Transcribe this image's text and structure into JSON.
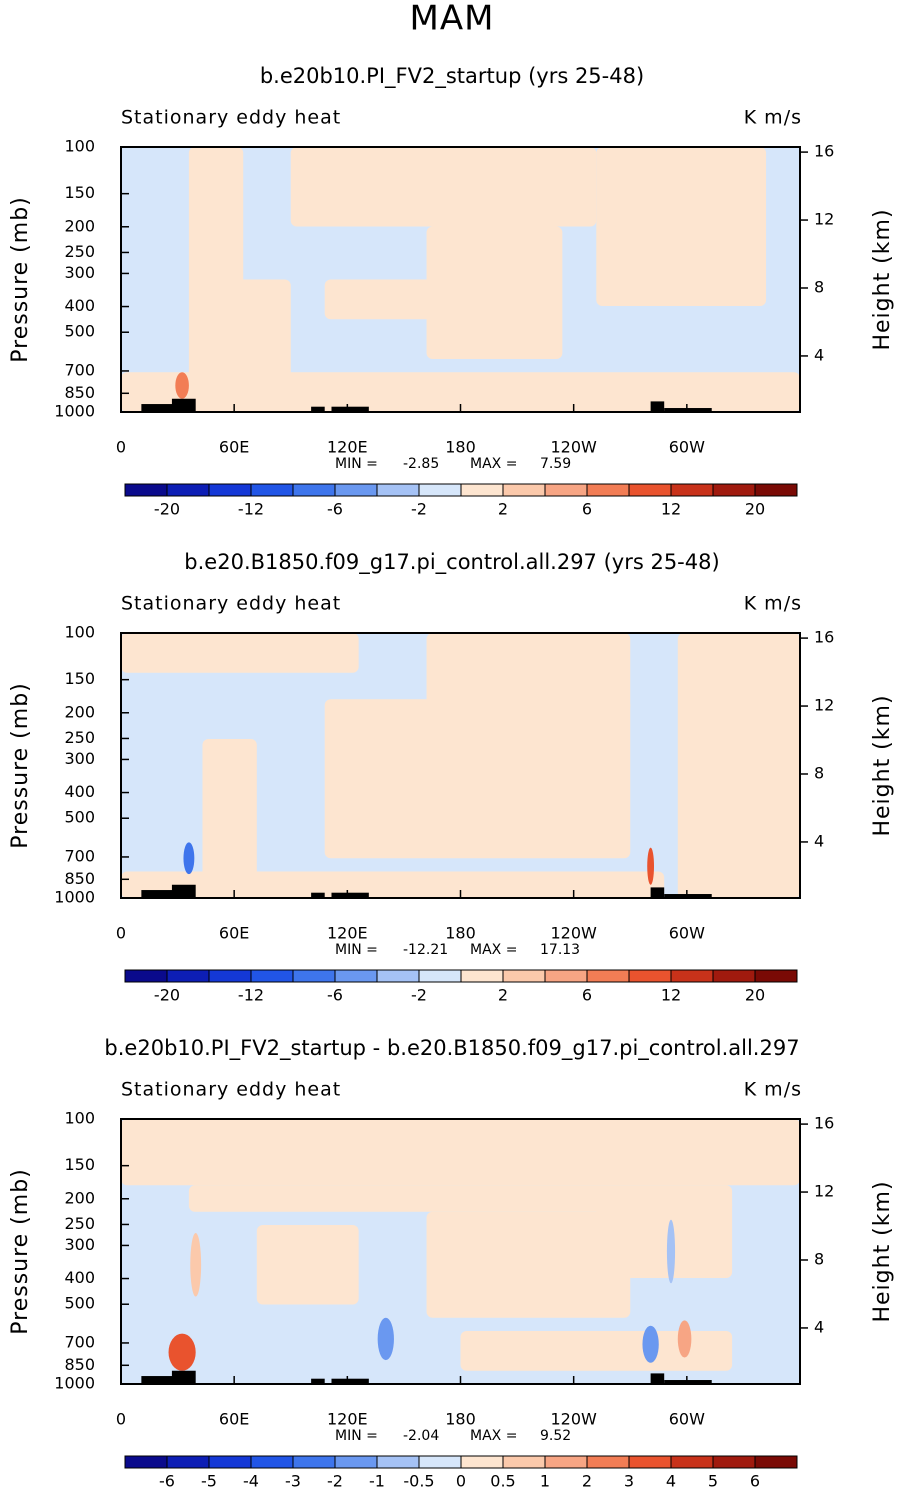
{
  "title": "MAM",
  "chart_data": [
    {
      "type": "contour",
      "title": "b.e20b10.PI_FV2_startup (yrs 25-48)",
      "subtitle": "Stationary eddy heat",
      "units": "K m/s",
      "ylabel": "Pressure (mb)",
      "y2label": "Height (km)",
      "ylim": [
        1000,
        100
      ],
      "yscale": "log",
      "yticks": [
        100,
        150,
        200,
        250,
        300,
        400,
        500,
        700,
        850,
        1000
      ],
      "y2lim": [
        0.7,
        16.3
      ],
      "y2ticks": [
        4,
        8,
        12,
        16
      ],
      "xlim": [
        0,
        360
      ],
      "xticks": [
        0,
        {
          "value": 60,
          "label": "60E"
        },
        {
          "value": 120,
          "label": "120E"
        },
        180,
        {
          "value": 240,
          "label": "120W"
        },
        {
          "value": 300,
          "label": "60W"
        }
      ],
      "min_label": "MIN =",
      "min": -2.85,
      "max_label": "MAX =",
      "max": 7.59,
      "levels": [
        -20,
        null,
        -12,
        null,
        -6,
        null,
        -2,
        null,
        2,
        null,
        6,
        null,
        12,
        null,
        20
      ],
      "colors": [
        "#0a0a8c",
        "#0d1eb5",
        "#1438d6",
        "#2155e6",
        "#3e75ec",
        "#6a98f0",
        "#a5c2f5",
        "#d6e6fa",
        "#fde5d0",
        "#fbc9ab",
        "#f7a584",
        "#f27d55",
        "#e9532e",
        "#c8321a",
        "#a01a0e",
        "#7a0a05"
      ]
    },
    {
      "type": "contour",
      "title": "b.e20.B1850.f09_g17.pi_control.all.297 (yrs 25-48)",
      "subtitle": "Stationary eddy heat",
      "units": "K m/s",
      "ylabel": "Pressure (mb)",
      "y2label": "Height (km)",
      "ylim": [
        1000,
        100
      ],
      "yscale": "log",
      "yticks": [
        100,
        150,
        200,
        250,
        300,
        400,
        500,
        700,
        850,
        1000
      ],
      "y2lim": [
        0.7,
        16.3
      ],
      "y2ticks": [
        4,
        8,
        12,
        16
      ],
      "xlim": [
        0,
        360
      ],
      "xticks": [
        0,
        {
          "value": 60,
          "label": "60E"
        },
        {
          "value": 120,
          "label": "120E"
        },
        180,
        {
          "value": 240,
          "label": "120W"
        },
        {
          "value": 300,
          "label": "60W"
        }
      ],
      "min_label": "MIN =",
      "min": -12.21,
      "max_label": "MAX =",
      "max": 17.13,
      "levels": [
        -20,
        null,
        -12,
        null,
        -6,
        null,
        -2,
        null,
        2,
        null,
        6,
        null,
        12,
        null,
        20
      ],
      "colors": [
        "#0a0a8c",
        "#0d1eb5",
        "#1438d6",
        "#2155e6",
        "#3e75ec",
        "#6a98f0",
        "#a5c2f5",
        "#d6e6fa",
        "#fde5d0",
        "#fbc9ab",
        "#f7a584",
        "#f27d55",
        "#e9532e",
        "#c8321a",
        "#a01a0e",
        "#7a0a05"
      ]
    },
    {
      "type": "contour",
      "title": "b.e20b10.PI_FV2_startup - b.e20.B1850.f09_g17.pi_control.all.297",
      "subtitle": "Stationary eddy heat",
      "units": "K m/s",
      "ylabel": "Pressure (mb)",
      "y2label": "Height (km)",
      "ylim": [
        1000,
        100
      ],
      "yscale": "log",
      "yticks": [
        100,
        150,
        200,
        250,
        300,
        400,
        500,
        700,
        850,
        1000
      ],
      "y2lim": [
        0.7,
        16.3
      ],
      "y2ticks": [
        4,
        8,
        12,
        16
      ],
      "xlim": [
        0,
        360
      ],
      "xticks": [
        0,
        {
          "value": 60,
          "label": "60E"
        },
        {
          "value": 120,
          "label": "120E"
        },
        180,
        {
          "value": 240,
          "label": "120W"
        },
        {
          "value": 300,
          "label": "60W"
        }
      ],
      "min_label": "MIN =",
      "min": -2.04,
      "max_label": "MAX =",
      "max": 9.52,
      "levels": [
        -6,
        -5,
        -4,
        -3,
        -2,
        -1,
        -0.5,
        0,
        0.5,
        1,
        2,
        3,
        4,
        5,
        6
      ],
      "colors": [
        "#0a0a8c",
        "#0d1eb5",
        "#1438d6",
        "#2155e6",
        "#3e75ec",
        "#6a98f0",
        "#a5c2f5",
        "#d6e6fa",
        "#fde5d0",
        "#fbc9ab",
        "#f7a584",
        "#f27d55",
        "#e9532e",
        "#c8321a",
        "#a01a0e",
        "#7a0a05"
      ]
    }
  ]
}
